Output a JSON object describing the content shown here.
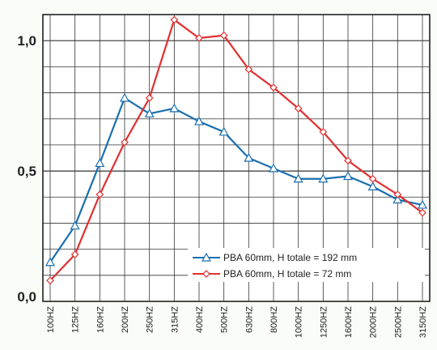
{
  "chart_data": {
    "type": "line",
    "categories": [
      "100HZ",
      "125HZ",
      "160HZ",
      "200HZ",
      "250HZ",
      "315HZ",
      "400HZ",
      "500HZ",
      "630HZ",
      "800HZ",
      "1000HZ",
      "1250HZ",
      "1600HZ",
      "2000HZ",
      "2500HZ",
      "3150HZ"
    ],
    "ylim": [
      0,
      1
    ],
    "yticks": [
      {
        "value": 0,
        "label": "0,0"
      },
      {
        "value": 0.5,
        "label": "0,5"
      },
      {
        "value": 1,
        "label": "1,0"
      }
    ],
    "grid": true,
    "legend_position": "bottom-right",
    "series": [
      {
        "name": "PBA 60mm, H totale = 192 mm",
        "color": "#1a6fae",
        "marker": "triangle",
        "values": [
          0.15,
          0.29,
          0.53,
          0.78,
          0.72,
          0.74,
          0.69,
          0.65,
          0.55,
          0.51,
          0.47,
          0.47,
          0.48,
          0.44,
          0.39,
          0.37
        ]
      },
      {
        "name": "PBA 60mm, H totale =   72 mm",
        "color": "#e03030",
        "marker": "diamond",
        "values": [
          0.08,
          0.18,
          0.41,
          0.61,
          0.78,
          1.08,
          1.01,
          1.02,
          0.89,
          0.82,
          0.74,
          0.65,
          0.54,
          0.47,
          0.41,
          0.34
        ]
      }
    ]
  }
}
